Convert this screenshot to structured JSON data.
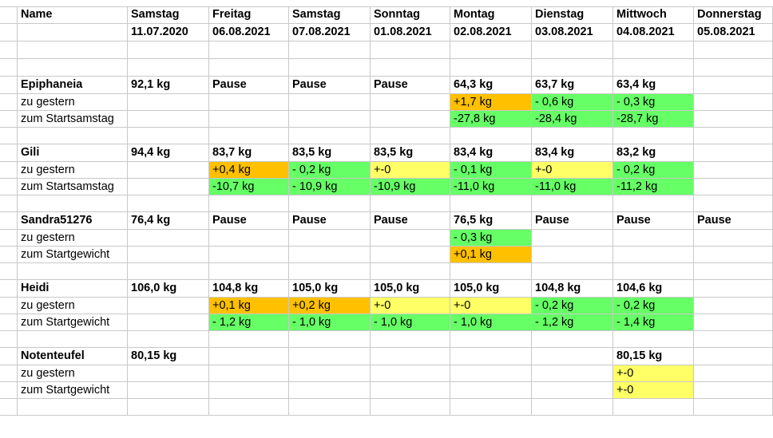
{
  "header": {
    "name": "Name",
    "days": [
      "Samstag",
      "Freitag",
      "Samstag",
      "Sonntag",
      "Montag",
      "Dienstag",
      "Mittwoch",
      "Donnerstag"
    ],
    "dates": [
      "11.07.2020",
      "06.08.2021",
      "07.08.2021",
      "01.08.2021",
      "02.08.2021",
      "03.08.2021",
      "04.08.2021",
      "05.08.2021"
    ]
  },
  "persons": [
    {
      "name": "Epiphaneia",
      "weights": [
        "92,1 kg",
        "Pause",
        "Pause",
        "Pause",
        "64,3 kg",
        "63,7 kg",
        "63,4 kg",
        ""
      ],
      "rows": [
        {
          "label": "zu gestern",
          "values": [
            "",
            "",
            "",
            "",
            "+1,7 kg",
            "- 0,6 kg",
            "- 0,3 kg",
            ""
          ],
          "colors": [
            "",
            "",
            "",
            "",
            "orange",
            "green",
            "green",
            ""
          ]
        },
        {
          "label": "zum Startsamstag",
          "values": [
            "",
            "",
            "",
            "",
            "-27,8 kg",
            "-28,4 kg",
            "-28,7 kg",
            ""
          ],
          "colors": [
            "",
            "",
            "",
            "",
            "green",
            "green",
            "green",
            ""
          ]
        }
      ]
    },
    {
      "name": "Gili",
      "weights": [
        "94,4 kg",
        "83,7 kg",
        "83,5 kg",
        "83,5 kg",
        "83,4 kg",
        "83,4 kg",
        "83,2 kg",
        ""
      ],
      "rows": [
        {
          "label": "zu gestern",
          "values": [
            "",
            "+0,4 kg",
            "- 0,2 kg",
            "+-0",
            "- 0,1 kg",
            "+-0",
            "- 0,2 kg",
            ""
          ],
          "colors": [
            "",
            "orange",
            "green",
            "yellow",
            "green",
            "yellow",
            "green",
            ""
          ]
        },
        {
          "label": "zum Startsamstag",
          "values": [
            "",
            "-10,7 kg",
            "- 10,9 kg",
            "-10,9 kg",
            "-11,0 kg",
            "-11,0 kg",
            "-11,2 kg",
            ""
          ],
          "colors": [
            "",
            "green",
            "green",
            "green",
            "green",
            "green",
            "green",
            ""
          ]
        }
      ]
    },
    {
      "name": "Sandra51276",
      "weights": [
        "76,4 kg",
        "Pause",
        "Pause",
        "Pause",
        "76,5 kg",
        "Pause",
        "Pause",
        "Pause"
      ],
      "rows": [
        {
          "label": "zu gestern",
          "values": [
            "",
            "",
            "",
            "",
            "- 0,3 kg",
            "",
            "",
            ""
          ],
          "colors": [
            "",
            "",
            "",
            "",
            "green",
            "",
            "",
            ""
          ]
        },
        {
          "label": "zum Startgewicht",
          "values": [
            "",
            "",
            "",
            "",
            "+0,1 kg",
            "",
            "",
            ""
          ],
          "colors": [
            "",
            "",
            "",
            "",
            "orange",
            "",
            "",
            ""
          ]
        }
      ]
    },
    {
      "name": "Heidi",
      "weights": [
        "106,0 kg",
        "104,8 kg",
        "105,0 kg",
        "105,0 kg",
        "105,0 kg",
        "104,8 kg",
        "104,6 kg",
        ""
      ],
      "rows": [
        {
          "label": "zu gestern",
          "values": [
            "",
            "+0,1 kg",
            "+0,2 kg",
            "+-0",
            "+-0",
            "- 0,2 kg",
            "- 0,2 kg",
            ""
          ],
          "colors": [
            "",
            "orange",
            "orange",
            "yellow",
            "yellow",
            "green",
            "green",
            ""
          ]
        },
        {
          "label": "zum Startgewicht",
          "values": [
            "",
            "- 1,2 kg",
            "- 1,0 kg",
            "- 1,0 kg",
            "- 1,0 kg",
            "- 1,2 kg",
            "- 1,4 kg",
            ""
          ],
          "colors": [
            "",
            "green",
            "green",
            "green",
            "green",
            "green",
            "green",
            ""
          ]
        }
      ]
    },
    {
      "name": "Notenteufel",
      "weights": [
        "80,15 kg",
        "",
        "",
        "",
        "",
        "",
        "80,15 kg",
        ""
      ],
      "rows": [
        {
          "label": "zu gestern",
          "values": [
            "",
            "",
            "",
            "",
            "",
            "",
            "+-0",
            ""
          ],
          "colors": [
            "",
            "",
            "",
            "",
            "",
            "",
            "yellow",
            ""
          ]
        },
        {
          "label": "zum Startgewicht",
          "values": [
            "",
            "",
            "",
            "",
            "",
            "",
            "+-0",
            ""
          ],
          "colors": [
            "",
            "",
            "",
            "",
            "",
            "",
            "yellow",
            ""
          ]
        }
      ]
    }
  ]
}
